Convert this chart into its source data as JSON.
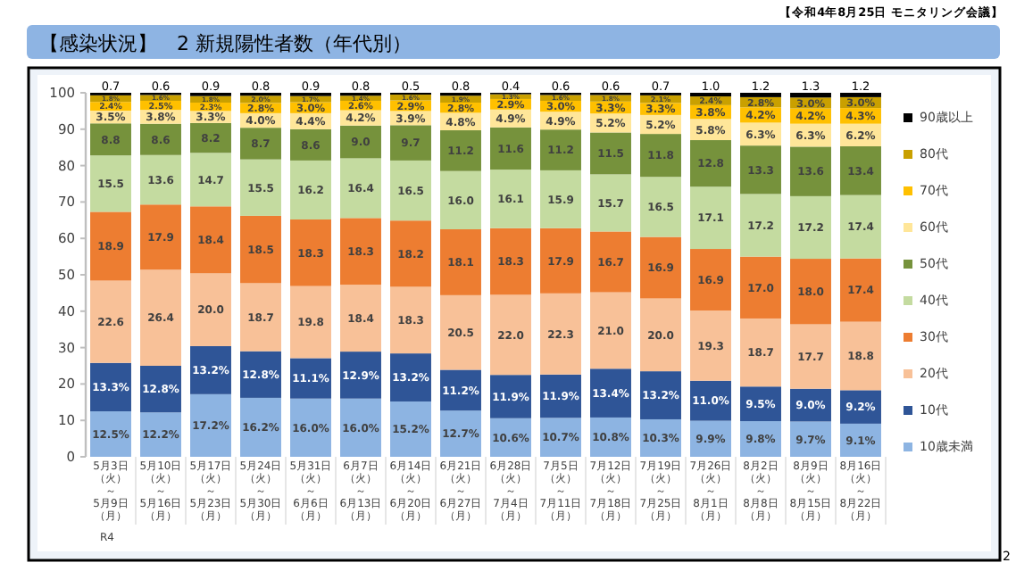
{
  "chart_data": {
    "type": "bar",
    "stacked": true,
    "title": "【感染状況】　2 新規陽性者数（年代別）",
    "annotations": [
      "【令和4年8月25日 モニタリング会議】",
      "R4",
      "2"
    ],
    "categories": [
      "5月3日（火）～5月9日（月）",
      "5月10日（火）～5月16日（月）",
      "5月17日（火）～5月23日（月）",
      "5月24日（火）～5月30日（月）",
      "5月31日（火）～6月6日（月）",
      "6月7日（火）～6月13日（月）",
      "6月14日（火）～6月20日（月）",
      "6月21日（火）～6月27日（月）",
      "6月28日（火）～7月4日（月）",
      "7月5日（火）～7月11日（月）",
      "7月12日（火）～7月18日（月）",
      "7月19日（火）～7月25日（月）",
      "7月26日（火）～8月1日（月）",
      "8月2日（火）～8月8日（月）",
      "8月9日（火）～8月15日（月）",
      "8月16日（火）～8月22日（月）"
    ],
    "ylim": [
      0,
      100
    ],
    "yticks": [
      0,
      10,
      20,
      30,
      40,
      50,
      60,
      70,
      80,
      90,
      100
    ],
    "grid": false,
    "legend": "right",
    "series": [
      {
        "name": "10歳未満",
        "color": "#8db4e2",
        "values": [
          12.5,
          12.2,
          17.2,
          16.2,
          16.0,
          16.0,
          15.2,
          12.7,
          10.6,
          10.7,
          10.8,
          10.3,
          9.9,
          9.8,
          9.7,
          9.1
        ],
        "value_labels": [
          "12.5%",
          "12.2%",
          "17.2%",
          "16.2%",
          "16.0%",
          "16.0%",
          "15.2%",
          "12.7%",
          "10.6%",
          "10.7%",
          "10.8%",
          "10.3%",
          "9.9%",
          "9.8%",
          "9.7%",
          "9.1%"
        ]
      },
      {
        "name": "10代",
        "color": "#2f5597",
        "values": [
          13.3,
          12.8,
          13.2,
          12.8,
          11.1,
          12.9,
          13.2,
          11.2,
          11.9,
          11.9,
          13.4,
          13.2,
          11.0,
          9.5,
          9.0,
          9.2
        ],
        "value_labels": [
          "13.3%",
          "12.8%",
          "13.2%",
          "12.8%",
          "11.1%",
          "12.9%",
          "13.2%",
          "11.2%",
          "11.9%",
          "11.9%",
          "13.4%",
          "13.2%",
          "11.0%",
          "9.5%",
          "9.0%",
          "9.2%"
        ]
      },
      {
        "name": "20代",
        "color": "#f8c198",
        "values": [
          22.6,
          26.4,
          20.0,
          18.7,
          19.8,
          18.4,
          18.3,
          20.5,
          22.0,
          22.3,
          21.0,
          20.0,
          19.3,
          18.7,
          17.7,
          18.8
        ],
        "value_labels": [
          "22.6",
          "26.4",
          "20.0",
          "18.7",
          "19.8",
          "18.4",
          "18.3",
          "20.5",
          "22.0",
          "22.3",
          "21.0",
          "20.0",
          "19.3",
          "18.7",
          "17.7",
          "18.8"
        ]
      },
      {
        "name": "30代",
        "color": "#ed7d31",
        "values": [
          18.9,
          17.9,
          18.4,
          18.5,
          18.3,
          18.3,
          18.2,
          18.1,
          18.3,
          17.9,
          16.7,
          16.9,
          16.9,
          17.0,
          18.0,
          17.4
        ],
        "value_labels": [
          "18.9",
          "17.9",
          "18.4",
          "18.5",
          "18.3",
          "18.3",
          "18.2",
          "18.1",
          "18.3",
          "17.9",
          "16.7",
          "16.9",
          "16.9",
          "17.0",
          "18.0",
          "17.4"
        ]
      },
      {
        "name": "40代",
        "color": "#c4dba0",
        "values": [
          15.5,
          13.6,
          14.7,
          15.5,
          16.2,
          16.4,
          16.5,
          16.0,
          16.1,
          15.9,
          15.7,
          16.5,
          17.1,
          17.2,
          17.2,
          17.4
        ],
        "value_labels": [
          "15.5",
          "13.6",
          "14.7",
          "15.5",
          "16.2",
          "16.4",
          "16.5",
          "16.0",
          "16.1",
          "15.9",
          "15.7",
          "16.5",
          "17.1",
          "17.2",
          "17.2",
          "17.4"
        ]
      },
      {
        "name": "50代",
        "color": "#76923c",
        "values": [
          8.8,
          8.6,
          8.2,
          8.7,
          8.6,
          9.0,
          9.7,
          11.2,
          11.6,
          11.2,
          11.5,
          11.8,
          12.8,
          13.3,
          13.6,
          13.4
        ],
        "value_labels": [
          "8.8",
          "8.6",
          "8.2",
          "8.7",
          "8.6",
          "9.0",
          "9.7",
          "11.2",
          "11.6",
          "11.2",
          "11.5",
          "11.8",
          "12.8",
          "13.3",
          "13.6",
          "13.4"
        ]
      },
      {
        "name": "60代",
        "color": "#ffe699",
        "values": [
          3.5,
          3.8,
          3.3,
          4.0,
          4.4,
          4.2,
          3.9,
          4.8,
          4.9,
          4.9,
          5.2,
          5.2,
          5.8,
          6.3,
          6.3,
          6.2
        ],
        "value_labels": [
          "3.5%",
          "3.8%",
          "3.3%",
          "4.0%",
          "4.4%",
          "4.2%",
          "3.9%",
          "4.8%",
          "4.9%",
          "4.9%",
          "5.2%",
          "5.2%",
          "5.8%",
          "6.3%",
          "6.3%",
          "6.2%"
        ]
      },
      {
        "name": "70代",
        "color": "#ffc000",
        "values": [
          2.4,
          2.5,
          2.3,
          2.8,
          3.0,
          2.6,
          2.9,
          2.8,
          2.9,
          3.0,
          3.3,
          3.3,
          3.8,
          4.2,
          4.2,
          4.3
        ],
        "value_labels": [
          "2.4%",
          "2.5%",
          "2.3%",
          "2.8%",
          "3.0%",
          "2.6%",
          "2.9%",
          "2.8%",
          "2.9%",
          "3.0%",
          "3.3%",
          "3.3%",
          "3.8%",
          "4.2%",
          "4.2%",
          "4.3%"
        ]
      },
      {
        "name": "80代",
        "color": "#c9a000",
        "values": [
          1.8,
          1.6,
          1.8,
          2.0,
          1.7,
          1.4,
          1.6,
          1.9,
          1.3,
          1.6,
          1.8,
          2.1,
          2.4,
          2.8,
          3.0,
          3.0
        ],
        "value_labels": [
          "1.8%",
          "1.6%",
          "1.8%",
          "2.0%",
          "1.7%",
          "1.4%",
          "1.6%",
          "1.9%",
          "1.3%",
          "1.6%",
          "1.8%",
          "2.1%",
          "2.4%",
          "2.8%",
          "3.0%",
          "3.0%"
        ]
      },
      {
        "name": "90歳以上",
        "color": "#000000",
        "values": [
          0.7,
          0.6,
          0.9,
          0.8,
          0.9,
          0.8,
          0.5,
          0.8,
          0.4,
          0.6,
          0.6,
          0.7,
          1.0,
          1.2,
          1.3,
          1.2
        ],
        "value_labels": [
          "0.7",
          "0.6",
          "0.9",
          "0.8",
          "0.9",
          "0.8",
          "0.5",
          "0.8",
          "0.4",
          "0.6",
          "0.6",
          "0.7",
          "1.0",
          "1.2",
          "1.3",
          "1.2"
        ]
      }
    ]
  }
}
